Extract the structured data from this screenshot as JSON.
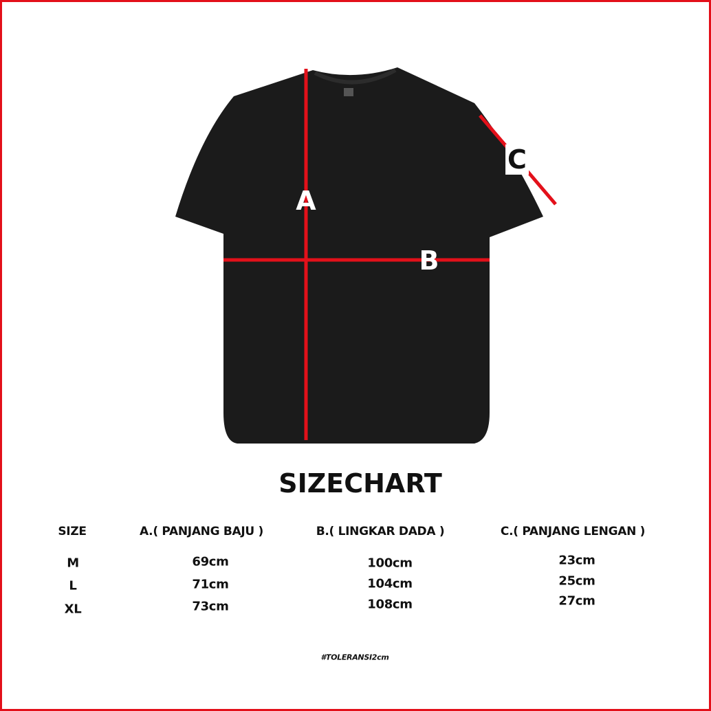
{
  "colors": {
    "border": "#e3101a",
    "measure_line": "#e3101a",
    "shirt": "#1b1b1b"
  },
  "markers": {
    "a": "A",
    "b": "B",
    "c": "C"
  },
  "title": "SIZECHART",
  "table": {
    "headers": [
      "SIZE",
      "A.( PANJANG BAJU )",
      "B.( LINGKAR DADA )",
      "C.( PANJANG LENGAN )"
    ],
    "rows": [
      [
        "M",
        "69cm",
        "100cm",
        "23cm"
      ],
      [
        "L",
        "71cm",
        "104cm",
        "25cm"
      ],
      [
        "XL",
        "73cm",
        "108cm",
        "27cm"
      ]
    ]
  },
  "tolerance": "#TOLERANSI2cm"
}
